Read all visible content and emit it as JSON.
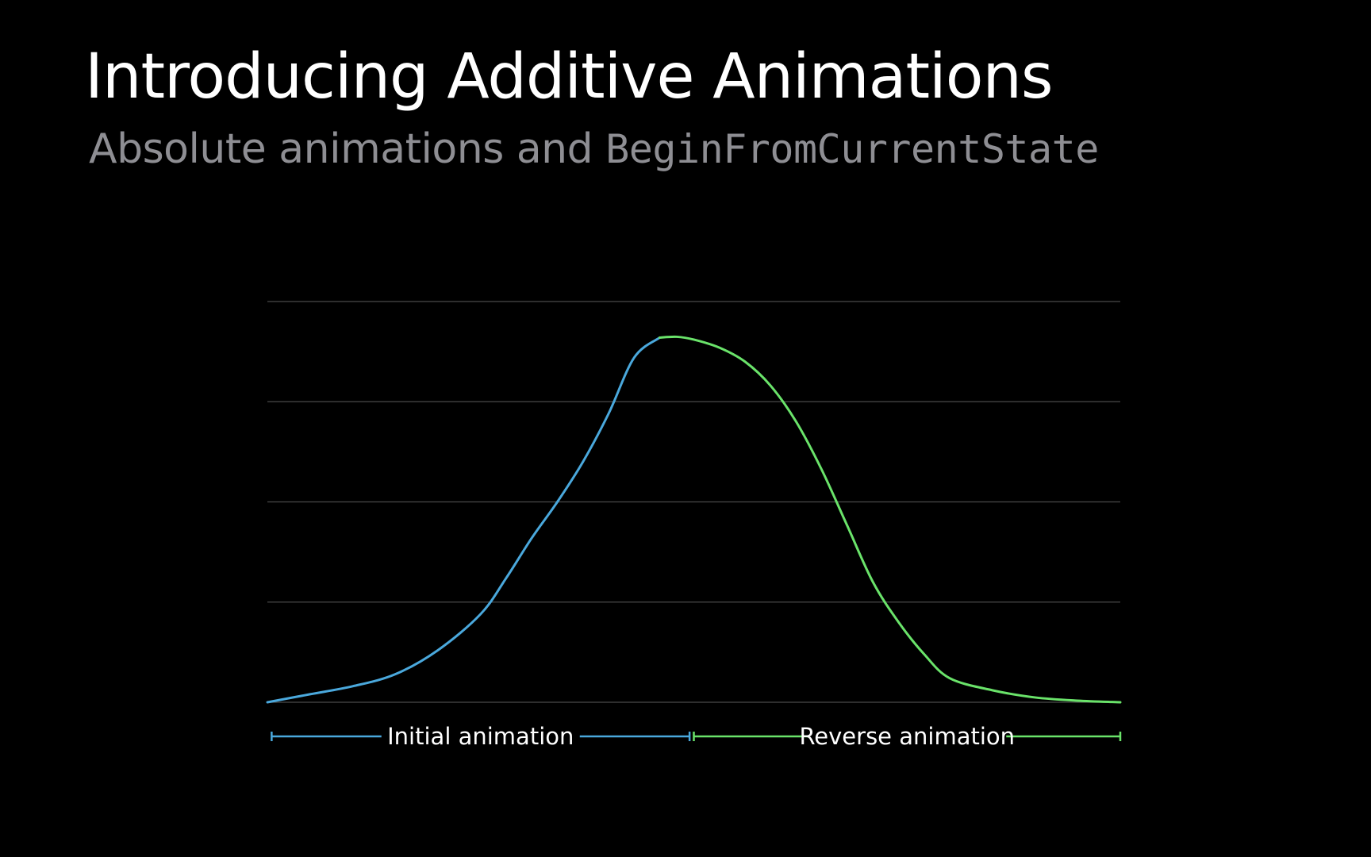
{
  "slide": {
    "title": "Introducing Additive Animations",
    "subtitle_text": "Absolute animations and ",
    "subtitle_code": "BeginFromCurrentState"
  },
  "colors": {
    "background": "#000000",
    "title": "#ffffff",
    "subtitle": "#8e8e93",
    "gridline": "#4a4a4a",
    "initial": "#4aa8dc",
    "reverse": "#6ae36a",
    "label": "#ffffff"
  },
  "chart_data": {
    "type": "line",
    "grid": true,
    "xlim": [
      0,
      1
    ],
    "ylim": [
      0,
      1
    ],
    "gridlines": [
      0,
      0.25,
      0.5,
      0.75,
      1.0
    ],
    "series": [
      {
        "name": "Initial animation",
        "color": "#4aa8dc",
        "points": [
          [
            0.0,
            0.0
          ],
          [
            0.05,
            0.02
          ],
          [
            0.1,
            0.04
          ],
          [
            0.15,
            0.07
          ],
          [
            0.2,
            0.13
          ],
          [
            0.25,
            0.22
          ],
          [
            0.28,
            0.31
          ],
          [
            0.31,
            0.41
          ],
          [
            0.34,
            0.5
          ],
          [
            0.37,
            0.6
          ],
          [
            0.4,
            0.72
          ],
          [
            0.43,
            0.86
          ],
          [
            0.46,
            0.91
          ]
        ]
      },
      {
        "name": "Reverse animation",
        "color": "#6ae36a",
        "points": [
          [
            0.46,
            0.91
          ],
          [
            0.48,
            0.912
          ],
          [
            0.5,
            0.905
          ],
          [
            0.53,
            0.885
          ],
          [
            0.56,
            0.85
          ],
          [
            0.59,
            0.79
          ],
          [
            0.62,
            0.7
          ],
          [
            0.65,
            0.58
          ],
          [
            0.68,
            0.44
          ],
          [
            0.71,
            0.3
          ],
          [
            0.74,
            0.2
          ],
          [
            0.77,
            0.12
          ],
          [
            0.8,
            0.06
          ],
          [
            0.85,
            0.03
          ],
          [
            0.9,
            0.012
          ],
          [
            0.95,
            0.004
          ],
          [
            1.0,
            0.0
          ]
        ]
      }
    ],
    "ranges": [
      {
        "label": "Initial animation",
        "x": [
          0.005,
          0.495
        ],
        "color": "#4aa8dc"
      },
      {
        "label": "Reverse animation",
        "x": [
          0.5,
          1.0
        ],
        "color": "#6ae36a"
      }
    ]
  }
}
